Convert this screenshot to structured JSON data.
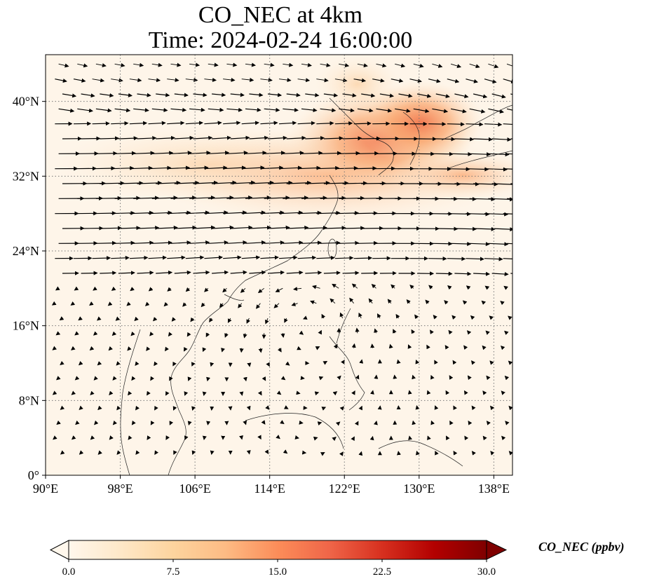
{
  "title": {
    "line1": "CO_NEC at 4km",
    "line2": "Time: 2024-02-24 16:00:00"
  },
  "map": {
    "extent": {
      "lon_min": 90,
      "lon_max": 140,
      "lat_min": 0,
      "lat_max": 45
    },
    "x_ticks": [
      {
        "lon": 90,
        "label": "90°E"
      },
      {
        "lon": 98,
        "label": "98°E"
      },
      {
        "lon": 106,
        "label": "106°E"
      },
      {
        "lon": 114,
        "label": "114°E"
      },
      {
        "lon": 122,
        "label": "122°E"
      },
      {
        "lon": 130,
        "label": "130°E"
      },
      {
        "lon": 138,
        "label": "138°E"
      }
    ],
    "y_ticks": [
      {
        "lat": 0,
        "label": "0°"
      },
      {
        "lat": 8,
        "label": "8°N"
      },
      {
        "lat": 16,
        "label": "16°N"
      },
      {
        "lat": 24,
        "label": "24°N"
      },
      {
        "lat": 32,
        "label": "32°N"
      },
      {
        "lat": 40,
        "label": "40°N"
      }
    ],
    "gridlines": true,
    "colormap": "OrRd",
    "variable": "CO_NEC",
    "high_concentration_region": "Northeast China, Korea, Yellow Sea, southern Japan"
  },
  "colorbar": {
    "title": "CO_NEC (ppbv)",
    "min": 0.0,
    "max": 30.0,
    "extend": "both",
    "ticks": [
      "0.0",
      "7.5",
      "15.0",
      "22.5",
      "30.0"
    ],
    "colors": [
      "#fff7ec",
      "#fee8c8",
      "#fdd49e",
      "#fdbb84",
      "#fc8d59",
      "#ef6548",
      "#d7301f",
      "#b30000",
      "#7f0000"
    ]
  }
}
